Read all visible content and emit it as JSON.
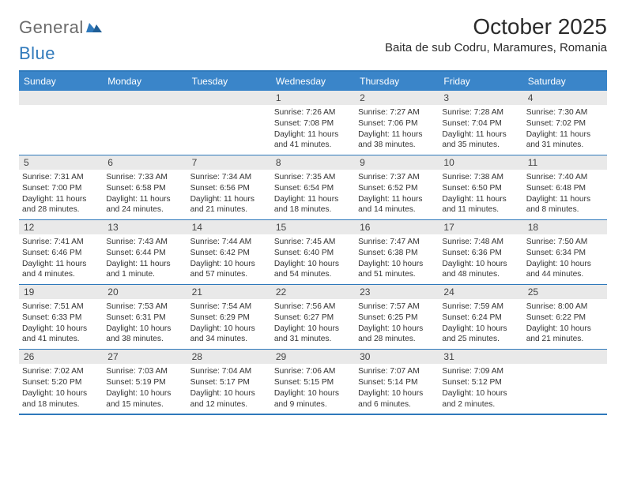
{
  "logo": {
    "text1": "General",
    "text2": "Blue"
  },
  "title": "October 2025",
  "location": "Baita de sub Codru, Maramures, Romania",
  "colors": {
    "header_bg": "#3a85c9",
    "header_border": "#2f79bb",
    "daynum_bg": "#e9e9e9",
    "text": "#333333",
    "logo_gray": "#6b6b6b",
    "logo_blue": "#2f79bb",
    "page_bg": "#ffffff"
  },
  "day_headers": [
    "Sunday",
    "Monday",
    "Tuesday",
    "Wednesday",
    "Thursday",
    "Friday",
    "Saturday"
  ],
  "weeks": [
    [
      {
        "day": "",
        "sunrise": "",
        "sunset": "",
        "daylight": ""
      },
      {
        "day": "",
        "sunrise": "",
        "sunset": "",
        "daylight": ""
      },
      {
        "day": "",
        "sunrise": "",
        "sunset": "",
        "daylight": ""
      },
      {
        "day": "1",
        "sunrise": "Sunrise: 7:26 AM",
        "sunset": "Sunset: 7:08 PM",
        "daylight": "Daylight: 11 hours and 41 minutes."
      },
      {
        "day": "2",
        "sunrise": "Sunrise: 7:27 AM",
        "sunset": "Sunset: 7:06 PM",
        "daylight": "Daylight: 11 hours and 38 minutes."
      },
      {
        "day": "3",
        "sunrise": "Sunrise: 7:28 AM",
        "sunset": "Sunset: 7:04 PM",
        "daylight": "Daylight: 11 hours and 35 minutes."
      },
      {
        "day": "4",
        "sunrise": "Sunrise: 7:30 AM",
        "sunset": "Sunset: 7:02 PM",
        "daylight": "Daylight: 11 hours and 31 minutes."
      }
    ],
    [
      {
        "day": "5",
        "sunrise": "Sunrise: 7:31 AM",
        "sunset": "Sunset: 7:00 PM",
        "daylight": "Daylight: 11 hours and 28 minutes."
      },
      {
        "day": "6",
        "sunrise": "Sunrise: 7:33 AM",
        "sunset": "Sunset: 6:58 PM",
        "daylight": "Daylight: 11 hours and 24 minutes."
      },
      {
        "day": "7",
        "sunrise": "Sunrise: 7:34 AM",
        "sunset": "Sunset: 6:56 PM",
        "daylight": "Daylight: 11 hours and 21 minutes."
      },
      {
        "day": "8",
        "sunrise": "Sunrise: 7:35 AM",
        "sunset": "Sunset: 6:54 PM",
        "daylight": "Daylight: 11 hours and 18 minutes."
      },
      {
        "day": "9",
        "sunrise": "Sunrise: 7:37 AM",
        "sunset": "Sunset: 6:52 PM",
        "daylight": "Daylight: 11 hours and 14 minutes."
      },
      {
        "day": "10",
        "sunrise": "Sunrise: 7:38 AM",
        "sunset": "Sunset: 6:50 PM",
        "daylight": "Daylight: 11 hours and 11 minutes."
      },
      {
        "day": "11",
        "sunrise": "Sunrise: 7:40 AM",
        "sunset": "Sunset: 6:48 PM",
        "daylight": "Daylight: 11 hours and 8 minutes."
      }
    ],
    [
      {
        "day": "12",
        "sunrise": "Sunrise: 7:41 AM",
        "sunset": "Sunset: 6:46 PM",
        "daylight": "Daylight: 11 hours and 4 minutes."
      },
      {
        "day": "13",
        "sunrise": "Sunrise: 7:43 AM",
        "sunset": "Sunset: 6:44 PM",
        "daylight": "Daylight: 11 hours and 1 minute."
      },
      {
        "day": "14",
        "sunrise": "Sunrise: 7:44 AM",
        "sunset": "Sunset: 6:42 PM",
        "daylight": "Daylight: 10 hours and 57 minutes."
      },
      {
        "day": "15",
        "sunrise": "Sunrise: 7:45 AM",
        "sunset": "Sunset: 6:40 PM",
        "daylight": "Daylight: 10 hours and 54 minutes."
      },
      {
        "day": "16",
        "sunrise": "Sunrise: 7:47 AM",
        "sunset": "Sunset: 6:38 PM",
        "daylight": "Daylight: 10 hours and 51 minutes."
      },
      {
        "day": "17",
        "sunrise": "Sunrise: 7:48 AM",
        "sunset": "Sunset: 6:36 PM",
        "daylight": "Daylight: 10 hours and 48 minutes."
      },
      {
        "day": "18",
        "sunrise": "Sunrise: 7:50 AM",
        "sunset": "Sunset: 6:34 PM",
        "daylight": "Daylight: 10 hours and 44 minutes."
      }
    ],
    [
      {
        "day": "19",
        "sunrise": "Sunrise: 7:51 AM",
        "sunset": "Sunset: 6:33 PM",
        "daylight": "Daylight: 10 hours and 41 minutes."
      },
      {
        "day": "20",
        "sunrise": "Sunrise: 7:53 AM",
        "sunset": "Sunset: 6:31 PM",
        "daylight": "Daylight: 10 hours and 38 minutes."
      },
      {
        "day": "21",
        "sunrise": "Sunrise: 7:54 AM",
        "sunset": "Sunset: 6:29 PM",
        "daylight": "Daylight: 10 hours and 34 minutes."
      },
      {
        "day": "22",
        "sunrise": "Sunrise: 7:56 AM",
        "sunset": "Sunset: 6:27 PM",
        "daylight": "Daylight: 10 hours and 31 minutes."
      },
      {
        "day": "23",
        "sunrise": "Sunrise: 7:57 AM",
        "sunset": "Sunset: 6:25 PM",
        "daylight": "Daylight: 10 hours and 28 minutes."
      },
      {
        "day": "24",
        "sunrise": "Sunrise: 7:59 AM",
        "sunset": "Sunset: 6:24 PM",
        "daylight": "Daylight: 10 hours and 25 minutes."
      },
      {
        "day": "25",
        "sunrise": "Sunrise: 8:00 AM",
        "sunset": "Sunset: 6:22 PM",
        "daylight": "Daylight: 10 hours and 21 minutes."
      }
    ],
    [
      {
        "day": "26",
        "sunrise": "Sunrise: 7:02 AM",
        "sunset": "Sunset: 5:20 PM",
        "daylight": "Daylight: 10 hours and 18 minutes."
      },
      {
        "day": "27",
        "sunrise": "Sunrise: 7:03 AM",
        "sunset": "Sunset: 5:19 PM",
        "daylight": "Daylight: 10 hours and 15 minutes."
      },
      {
        "day": "28",
        "sunrise": "Sunrise: 7:04 AM",
        "sunset": "Sunset: 5:17 PM",
        "daylight": "Daylight: 10 hours and 12 minutes."
      },
      {
        "day": "29",
        "sunrise": "Sunrise: 7:06 AM",
        "sunset": "Sunset: 5:15 PM",
        "daylight": "Daylight: 10 hours and 9 minutes."
      },
      {
        "day": "30",
        "sunrise": "Sunrise: 7:07 AM",
        "sunset": "Sunset: 5:14 PM",
        "daylight": "Daylight: 10 hours and 6 minutes."
      },
      {
        "day": "31",
        "sunrise": "Sunrise: 7:09 AM",
        "sunset": "Sunset: 5:12 PM",
        "daylight": "Daylight: 10 hours and 2 minutes."
      },
      {
        "day": "",
        "sunrise": "",
        "sunset": "",
        "daylight": ""
      }
    ]
  ]
}
